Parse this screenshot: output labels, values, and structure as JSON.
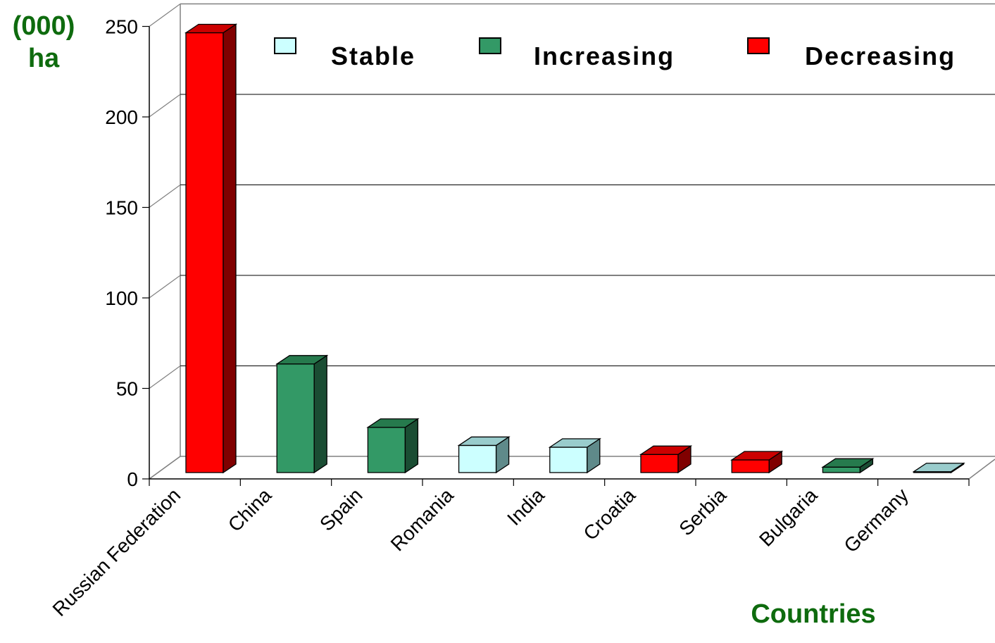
{
  "chart_data": {
    "type": "bar",
    "ylabel_line1": "(000)",
    "ylabel_line2": "ha",
    "xlabel": "Countries",
    "ylim": [
      0,
      250
    ],
    "yticks": [
      "0",
      "50",
      "100",
      "150",
      "200",
      "250"
    ],
    "categories": [
      "Russian Federation",
      "China",
      "Spain",
      "Romania",
      "India",
      "Croatia",
      "Serbia",
      "Bulgaria",
      "Germany"
    ],
    "values": [
      243,
      60,
      25,
      15,
      14,
      10,
      7,
      3,
      0.5
    ],
    "trend": [
      "Decreasing",
      "Increasing",
      "Increasing",
      "Stable",
      "Stable",
      "Decreasing",
      "Decreasing",
      "Increasing",
      "Stable"
    ],
    "legend": [
      {
        "label": "Stable",
        "color": "#ccffff"
      },
      {
        "label": "Increasing",
        "color": "#339966"
      },
      {
        "label": "Decreasing",
        "color": "#ff0000"
      }
    ],
    "legend_position": "top",
    "grid": true
  }
}
